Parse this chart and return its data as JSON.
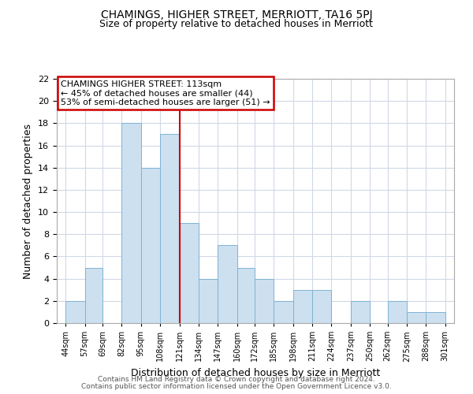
{
  "title": "CHAMINGS, HIGHER STREET, MERRIOTT, TA16 5PJ",
  "subtitle": "Size of property relative to detached houses in Merriott",
  "xlabel": "Distribution of detached houses by size in Merriott",
  "ylabel": "Number of detached properties",
  "bar_color": "#cce0f0",
  "bar_edge_color": "#7fb3d3",
  "reference_line_x": 121,
  "reference_line_color": "#cc0000",
  "bin_edges": [
    44,
    57,
    69,
    82,
    95,
    108,
    121,
    134,
    147,
    160,
    172,
    185,
    198,
    211,
    224,
    237,
    250,
    262,
    275,
    288,
    301
  ],
  "counts": [
    2,
    5,
    0,
    18,
    14,
    17,
    9,
    4,
    7,
    5,
    4,
    2,
    3,
    3,
    0,
    2,
    0,
    2,
    1,
    1
  ],
  "tick_labels": [
    "44sqm",
    "57sqm",
    "69sqm",
    "82sqm",
    "95sqm",
    "108sqm",
    "121sqm",
    "134sqm",
    "147sqm",
    "160sqm",
    "172sqm",
    "185sqm",
    "198sqm",
    "211sqm",
    "224sqm",
    "237sqm",
    "250sqm",
    "262sqm",
    "275sqm",
    "288sqm",
    "301sqm"
  ],
  "annotation_title": "CHAMINGS HIGHER STREET: 113sqm",
  "annotation_line1": "← 45% of detached houses are smaller (44)",
  "annotation_line2": "53% of semi-detached houses are larger (51) →",
  "annotation_box_color": "#ffffff",
  "annotation_box_edge": "#cc0000",
  "footer1": "Contains HM Land Registry data © Crown copyright and database right 2024.",
  "footer2": "Contains public sector information licensed under the Open Government Licence v3.0.",
  "ylim": [
    0,
    22
  ],
  "yticks": [
    0,
    2,
    4,
    6,
    8,
    10,
    12,
    14,
    16,
    18,
    20,
    22
  ],
  "background_color": "#ffffff",
  "grid_color": "#d0d8e8"
}
